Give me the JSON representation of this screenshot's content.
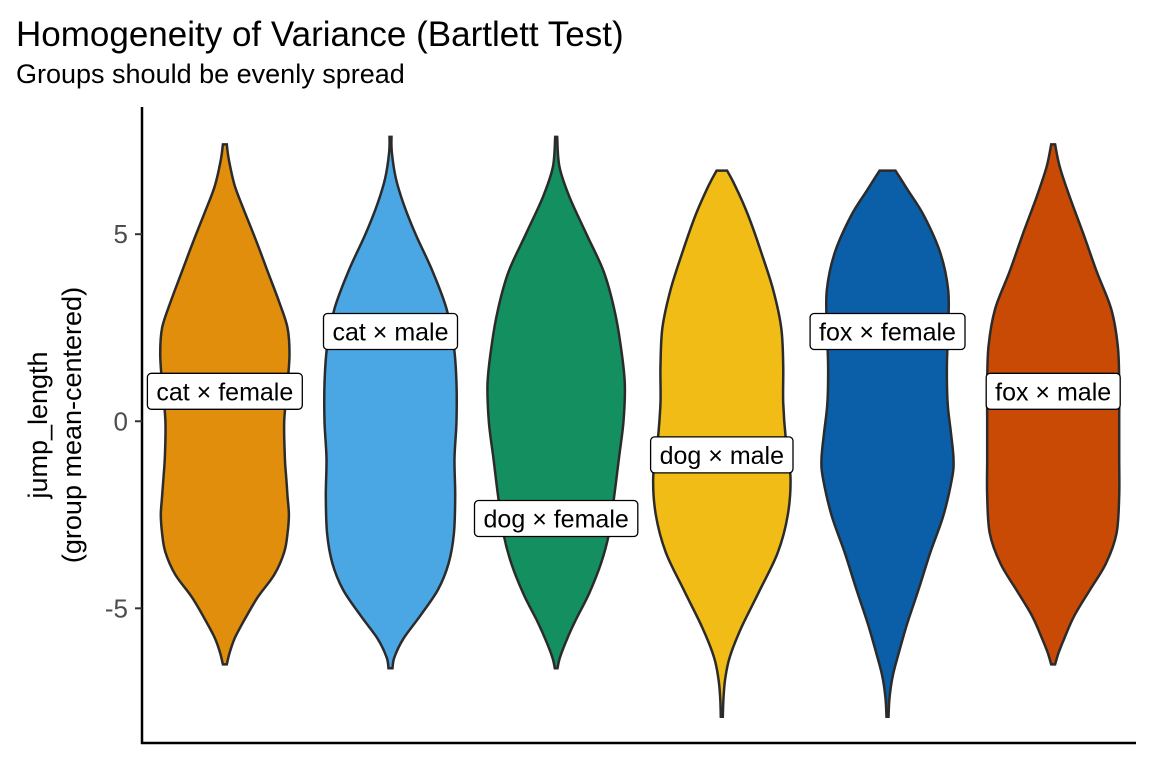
{
  "chart_data": {
    "type": "violin",
    "title": "Homogeneity of Variance (Bartlett Test)",
    "subtitle": "Groups should be evenly spread",
    "ylabel": [
      "jump_length",
      "(group mean-centered)"
    ],
    "xlabel": "",
    "ylim": [
      -8.6,
      8.4
    ],
    "yticks": [
      {
        "value": -5,
        "label": "-5"
      },
      {
        "value": 0,
        "label": "0"
      },
      {
        "value": 5,
        "label": "5"
      }
    ],
    "grid": false,
    "legend": "none",
    "series": [
      {
        "name": "cat × female",
        "color": "#E08E0B",
        "label_y": 0.8,
        "density": [
          [
            -6.5,
            0.03
          ],
          [
            -6.2,
            0.07
          ],
          [
            -5.8,
            0.15
          ],
          [
            -5.3,
            0.3
          ],
          [
            -4.7,
            0.5
          ],
          [
            -4.1,
            0.75
          ],
          [
            -3.5,
            0.9
          ],
          [
            -3.0,
            0.95
          ],
          [
            -2.5,
            0.97
          ],
          [
            -2.0,
            0.95
          ],
          [
            -1.5,
            0.93
          ],
          [
            -1.0,
            0.91
          ],
          [
            0.0,
            0.9
          ],
          [
            1.0,
            0.95
          ],
          [
            1.8,
            0.98
          ],
          [
            2.5,
            0.95
          ],
          [
            3.2,
            0.82
          ],
          [
            4.0,
            0.65
          ],
          [
            4.8,
            0.48
          ],
          [
            5.6,
            0.3
          ],
          [
            6.3,
            0.15
          ],
          [
            7.0,
            0.06
          ],
          [
            7.4,
            0.03
          ]
        ]
      },
      {
        "name": "cat × male",
        "color": "#4BA6E4",
        "label_y": 2.4,
        "density": [
          [
            -6.6,
            0.03
          ],
          [
            -6.3,
            0.06
          ],
          [
            -5.8,
            0.2
          ],
          [
            -5.2,
            0.45
          ],
          [
            -4.5,
            0.72
          ],
          [
            -3.8,
            0.88
          ],
          [
            -3.0,
            0.96
          ],
          [
            -2.0,
            0.98
          ],
          [
            -1.0,
            0.97
          ],
          [
            0.0,
            1.0
          ],
          [
            1.0,
            1.0
          ],
          [
            2.0,
            0.96
          ],
          [
            3.0,
            0.85
          ],
          [
            4.0,
            0.64
          ],
          [
            5.0,
            0.38
          ],
          [
            5.8,
            0.2
          ],
          [
            6.5,
            0.08
          ],
          [
            7.2,
            0.02
          ],
          [
            7.6,
            0.015
          ]
        ]
      },
      {
        "name": "dog × female",
        "color": "#148F60",
        "label_y": -2.6,
        "density": [
          [
            -6.6,
            0.02
          ],
          [
            -6.3,
            0.06
          ],
          [
            -5.8,
            0.17
          ],
          [
            -5.3,
            0.3
          ],
          [
            -4.6,
            0.5
          ],
          [
            -3.8,
            0.68
          ],
          [
            -3.0,
            0.8
          ],
          [
            -2.0,
            0.88
          ],
          [
            -1.0,
            0.95
          ],
          [
            0.0,
            1.02
          ],
          [
            1.0,
            1.04
          ],
          [
            2.0,
            0.98
          ],
          [
            3.0,
            0.88
          ],
          [
            4.0,
            0.72
          ],
          [
            5.0,
            0.46
          ],
          [
            6.0,
            0.2
          ],
          [
            6.8,
            0.05
          ],
          [
            7.6,
            0.015
          ]
        ]
      },
      {
        "name": "dog × male",
        "color": "#F1BC15",
        "label_y": -0.9,
        "density": [
          [
            -7.9,
            0.015
          ],
          [
            -7.4,
            0.025
          ],
          [
            -6.9,
            0.05
          ],
          [
            -6.3,
            0.12
          ],
          [
            -5.5,
            0.3
          ],
          [
            -4.5,
            0.58
          ],
          [
            -3.5,
            0.85
          ],
          [
            -2.5,
            1.0
          ],
          [
            -1.5,
            1.04
          ],
          [
            -0.5,
            0.97
          ],
          [
            0.5,
            0.93
          ],
          [
            1.5,
            0.93
          ],
          [
            2.5,
            0.9
          ],
          [
            3.5,
            0.78
          ],
          [
            4.5,
            0.6
          ],
          [
            5.5,
            0.4
          ],
          [
            6.3,
            0.2
          ],
          [
            6.7,
            0.08
          ]
        ]
      },
      {
        "name": "fox × female",
        "color": "#0B5FA8",
        "label_y": 2.4,
        "density": [
          [
            -7.9,
            0.015
          ],
          [
            -7.4,
            0.03
          ],
          [
            -6.8,
            0.08
          ],
          [
            -6.2,
            0.17
          ],
          [
            -5.4,
            0.3
          ],
          [
            -4.5,
            0.47
          ],
          [
            -3.5,
            0.65
          ],
          [
            -2.5,
            0.85
          ],
          [
            -1.5,
            0.98
          ],
          [
            -1.0,
            1.0
          ],
          [
            -0.3,
            0.96
          ],
          [
            0.5,
            0.91
          ],
          [
            1.5,
            0.9
          ],
          [
            2.5,
            0.92
          ],
          [
            3.5,
            0.92
          ],
          [
            4.5,
            0.8
          ],
          [
            5.5,
            0.55
          ],
          [
            6.2,
            0.3
          ],
          [
            6.7,
            0.12
          ]
        ]
      },
      {
        "name": "fox × male",
        "color": "#C94A05",
        "label_y": 0.8,
        "density": [
          [
            -6.5,
            0.03
          ],
          [
            -6.2,
            0.08
          ],
          [
            -5.8,
            0.17
          ],
          [
            -5.2,
            0.32
          ],
          [
            -4.5,
            0.56
          ],
          [
            -3.8,
            0.8
          ],
          [
            -3.0,
            0.96
          ],
          [
            -2.0,
            1.0
          ],
          [
            -1.0,
            1.0
          ],
          [
            0.0,
            1.0
          ],
          [
            1.0,
            1.0
          ],
          [
            2.0,
            0.98
          ],
          [
            3.0,
            0.88
          ],
          [
            4.0,
            0.66
          ],
          [
            5.0,
            0.46
          ],
          [
            6.0,
            0.25
          ],
          [
            6.8,
            0.1
          ],
          [
            7.4,
            0.03
          ]
        ]
      }
    ]
  }
}
